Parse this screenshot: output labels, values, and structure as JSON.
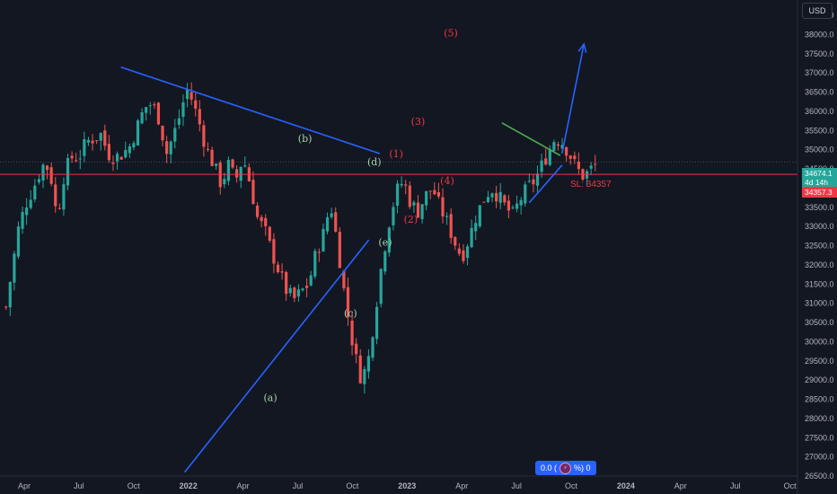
{
  "currency": "USD",
  "price_tags": {
    "current_price": "34674.1",
    "countdown": "4d 14h",
    "stop_loss": "34357.3"
  },
  "stop_loss_label": "SL: 34357",
  "footer_counter": {
    "left": "0.0 (",
    "right": "%) 0"
  },
  "colors": {
    "background": "#131722",
    "up_candle": "#26a69a",
    "down_candle": "#ef5350",
    "trendline": "#2962ff",
    "stop_loss_line": "#f23645",
    "wave_green": "#a5d6a7",
    "wave_red": "#f23645"
  },
  "chart_data": {
    "type": "candlestick",
    "ylim": [
      26500,
      38900
    ],
    "y_ticks": [
      "26500.0",
      "27000.0",
      "27500.0",
      "28000.0",
      "28500.0",
      "29000.0",
      "29500.0",
      "30000.0",
      "30500.0",
      "31000.0",
      "31500.0",
      "32000.0",
      "32500.0",
      "33000.0",
      "33500.0",
      "34000.0",
      "34500.0",
      "35000.0",
      "35500.0",
      "36000.0",
      "36500.0",
      "37000.0",
      "37500.0",
      "38000.0",
      "38500.0"
    ],
    "x_ticks": [
      {
        "label": "Apr",
        "x": 1.0
      },
      {
        "label": "Jul",
        "x": 4.0
      },
      {
        "label": "Oct",
        "x": 7.0
      },
      {
        "label": "2022",
        "x": 10.0
      },
      {
        "label": "Apr",
        "x": 13.0
      },
      {
        "label": "Jul",
        "x": 16.0
      },
      {
        "label": "Oct",
        "x": 19.0
      },
      {
        "label": "2023",
        "x": 22.0
      },
      {
        "label": "Apr",
        "x": 25.0
      },
      {
        "label": "Jul",
        "x": 28.0
      },
      {
        "label": "Oct",
        "x": 31.0
      },
      {
        "label": "2024",
        "x": 34.0
      },
      {
        "label": "Apr",
        "x": 37.0
      },
      {
        "label": "Jul",
        "x": 40.0
      },
      {
        "label": "Oct",
        "x": 43.0
      }
    ],
    "x_axis_unit": "months (fractional)",
    "xlim": [
      0,
      43.1
    ],
    "price_points": [
      [
        0.0,
        30900
      ],
      [
        0.3,
        31800
      ],
      [
        0.7,
        33000
      ],
      [
        1.1,
        33600
      ],
      [
        1.5,
        34000
      ],
      [
        2.0,
        34600
      ],
      [
        2.4,
        34500
      ],
      [
        2.8,
        33200
      ],
      [
        3.2,
        34400
      ],
      [
        3.6,
        34800
      ],
      [
        4.0,
        34800
      ],
      [
        4.4,
        35200
      ],
      [
        4.8,
        35300
      ],
      [
        5.2,
        35400
      ],
      [
        5.6,
        34900
      ],
      [
        6.0,
        34800
      ],
      [
        6.4,
        34900
      ],
      [
        6.8,
        35100
      ],
      [
        7.2,
        35600
      ],
      [
        7.6,
        36100
      ],
      [
        8.0,
        36200
      ],
      [
        8.4,
        35800
      ],
      [
        8.8,
        34900
      ],
      [
        9.2,
        35400
      ],
      [
        9.6,
        36000
      ],
      [
        9.9,
        36600
      ],
      [
        10.2,
        36300
      ],
      [
        10.6,
        35700
      ],
      [
        11.0,
        35000
      ],
      [
        11.4,
        34600
      ],
      [
        11.8,
        34100
      ],
      [
        12.2,
        34600
      ],
      [
        12.6,
        34200
      ],
      [
        13.0,
        34800
      ],
      [
        13.4,
        34100
      ],
      [
        13.8,
        33200
      ],
      [
        14.2,
        32900
      ],
      [
        14.6,
        32300
      ],
      [
        15.0,
        31800
      ],
      [
        15.4,
        31300
      ],
      [
        15.8,
        31100
      ],
      [
        16.2,
        31300
      ],
      [
        16.6,
        31500
      ],
      [
        17.0,
        32300
      ],
      [
        17.4,
        32800
      ],
      [
        17.8,
        33600
      ],
      [
        18.2,
        32500
      ],
      [
        18.6,
        31100
      ],
      [
        19.0,
        30000
      ],
      [
        19.4,
        29100
      ],
      [
        19.8,
        29300
      ],
      [
        20.2,
        30600
      ],
      [
        20.6,
        32000
      ],
      [
        21.0,
        33100
      ],
      [
        21.4,
        33900
      ],
      [
        21.8,
        34200
      ],
      [
        22.2,
        33600
      ],
      [
        22.6,
        33400
      ],
      [
        23.0,
        33800
      ],
      [
        23.4,
        34000
      ],
      [
        23.8,
        33500
      ],
      [
        24.2,
        33100
      ],
      [
        24.6,
        32600
      ],
      [
        25.0,
        32200
      ],
      [
        25.4,
        32700
      ],
      [
        25.8,
        33300
      ],
      [
        26.2,
        33700
      ],
      [
        26.6,
        34000
      ],
      [
        27.0,
        33800
      ],
      [
        27.4,
        33500
      ],
      [
        27.8,
        33300
      ],
      [
        28.2,
        33700
      ],
      [
        28.6,
        34000
      ],
      [
        29.0,
        34200
      ],
      [
        29.4,
        34600
      ],
      [
        29.8,
        35000
      ],
      [
        30.1,
        35300
      ],
      [
        30.5,
        35200
      ],
      [
        30.9,
        34900
      ],
      [
        31.3,
        34500
      ],
      [
        31.7,
        34300
      ],
      [
        32.1,
        34500
      ],
      [
        32.5,
        34674
      ]
    ],
    "trendlines": [
      {
        "from": [
          6.3,
          37150
        ],
        "to": [
          20.5,
          34900
        ],
        "color": "#2962ff"
      },
      {
        "from": [
          9.8,
          26600
        ],
        "to": [
          19.9,
          32650
        ],
        "color": "#2962ff"
      },
      {
        "from": [
          27.2,
          35700
        ],
        "to": [
          30.4,
          34850
        ],
        "color": "#4caf50"
      },
      {
        "from": [
          28.7,
          33620
        ],
        "to": [
          30.5,
          34600
        ],
        "color": "#2962ff"
      }
    ],
    "projection_arrow": {
      "from": [
        30.5,
        34900
      ],
      "to": [
        31.7,
        37750
      ],
      "color": "#2962ff"
    },
    "stop_loss": 34357,
    "current_price": 34674.1,
    "wave_labels": [
      {
        "text": "(a)",
        "x": 14.5,
        "y": 28450,
        "color": "#a5d6a7"
      },
      {
        "text": "(b)",
        "x": 16.4,
        "y": 35200,
        "color": "#a5d6a7"
      },
      {
        "text": "(c)",
        "x": 18.9,
        "y": 30650,
        "color": "#a5d6a7"
      },
      {
        "text": "(d)",
        "x": 20.2,
        "y": 34600,
        "color": "#a5d6a7"
      },
      {
        "text": "(e)",
        "x": 20.8,
        "y": 32500,
        "color": "#a5d6a7"
      },
      {
        "text": "(1)",
        "x": 21.4,
        "y": 34800,
        "color": "#f23645"
      },
      {
        "text": "(2)",
        "x": 22.2,
        "y": 33100,
        "color": "#f23645"
      },
      {
        "text": "(3)",
        "x": 22.6,
        "y": 35650,
        "color": "#f23645"
      },
      {
        "text": "(4)",
        "x": 24.2,
        "y": 34100,
        "color": "#f23645"
      },
      {
        "text": "(5)",
        "x": 24.4,
        "y": 37950,
        "color": "#f23645"
      }
    ]
  }
}
